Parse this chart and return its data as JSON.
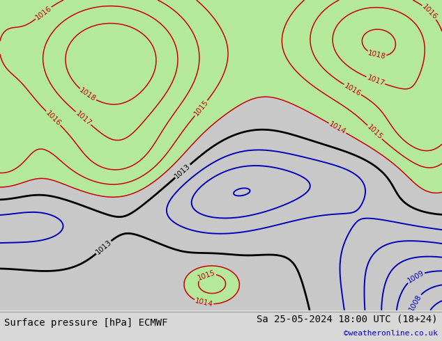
{
  "title_left": "Surface pressure [hPa] ECMWF",
  "title_right": "Sa 25-05-2024 18:00 UTC (18+24)",
  "credit": "©weatheronline.co.uk",
  "background_color": "#c8c8c8",
  "high_fill_color": "#b4e89a",
  "bottom_bar_color": "#d8d8d8",
  "red_color": "#cc0000",
  "black_color": "#000000",
  "blue_color": "#0000bb",
  "label_fontsize": 7.5,
  "title_fontsize": 10,
  "credit_fontsize": 8,
  "credit_color": "#0000cc",
  "title_color": "#000000",
  "figsize": [
    6.34,
    4.9
  ],
  "dpi": 100
}
